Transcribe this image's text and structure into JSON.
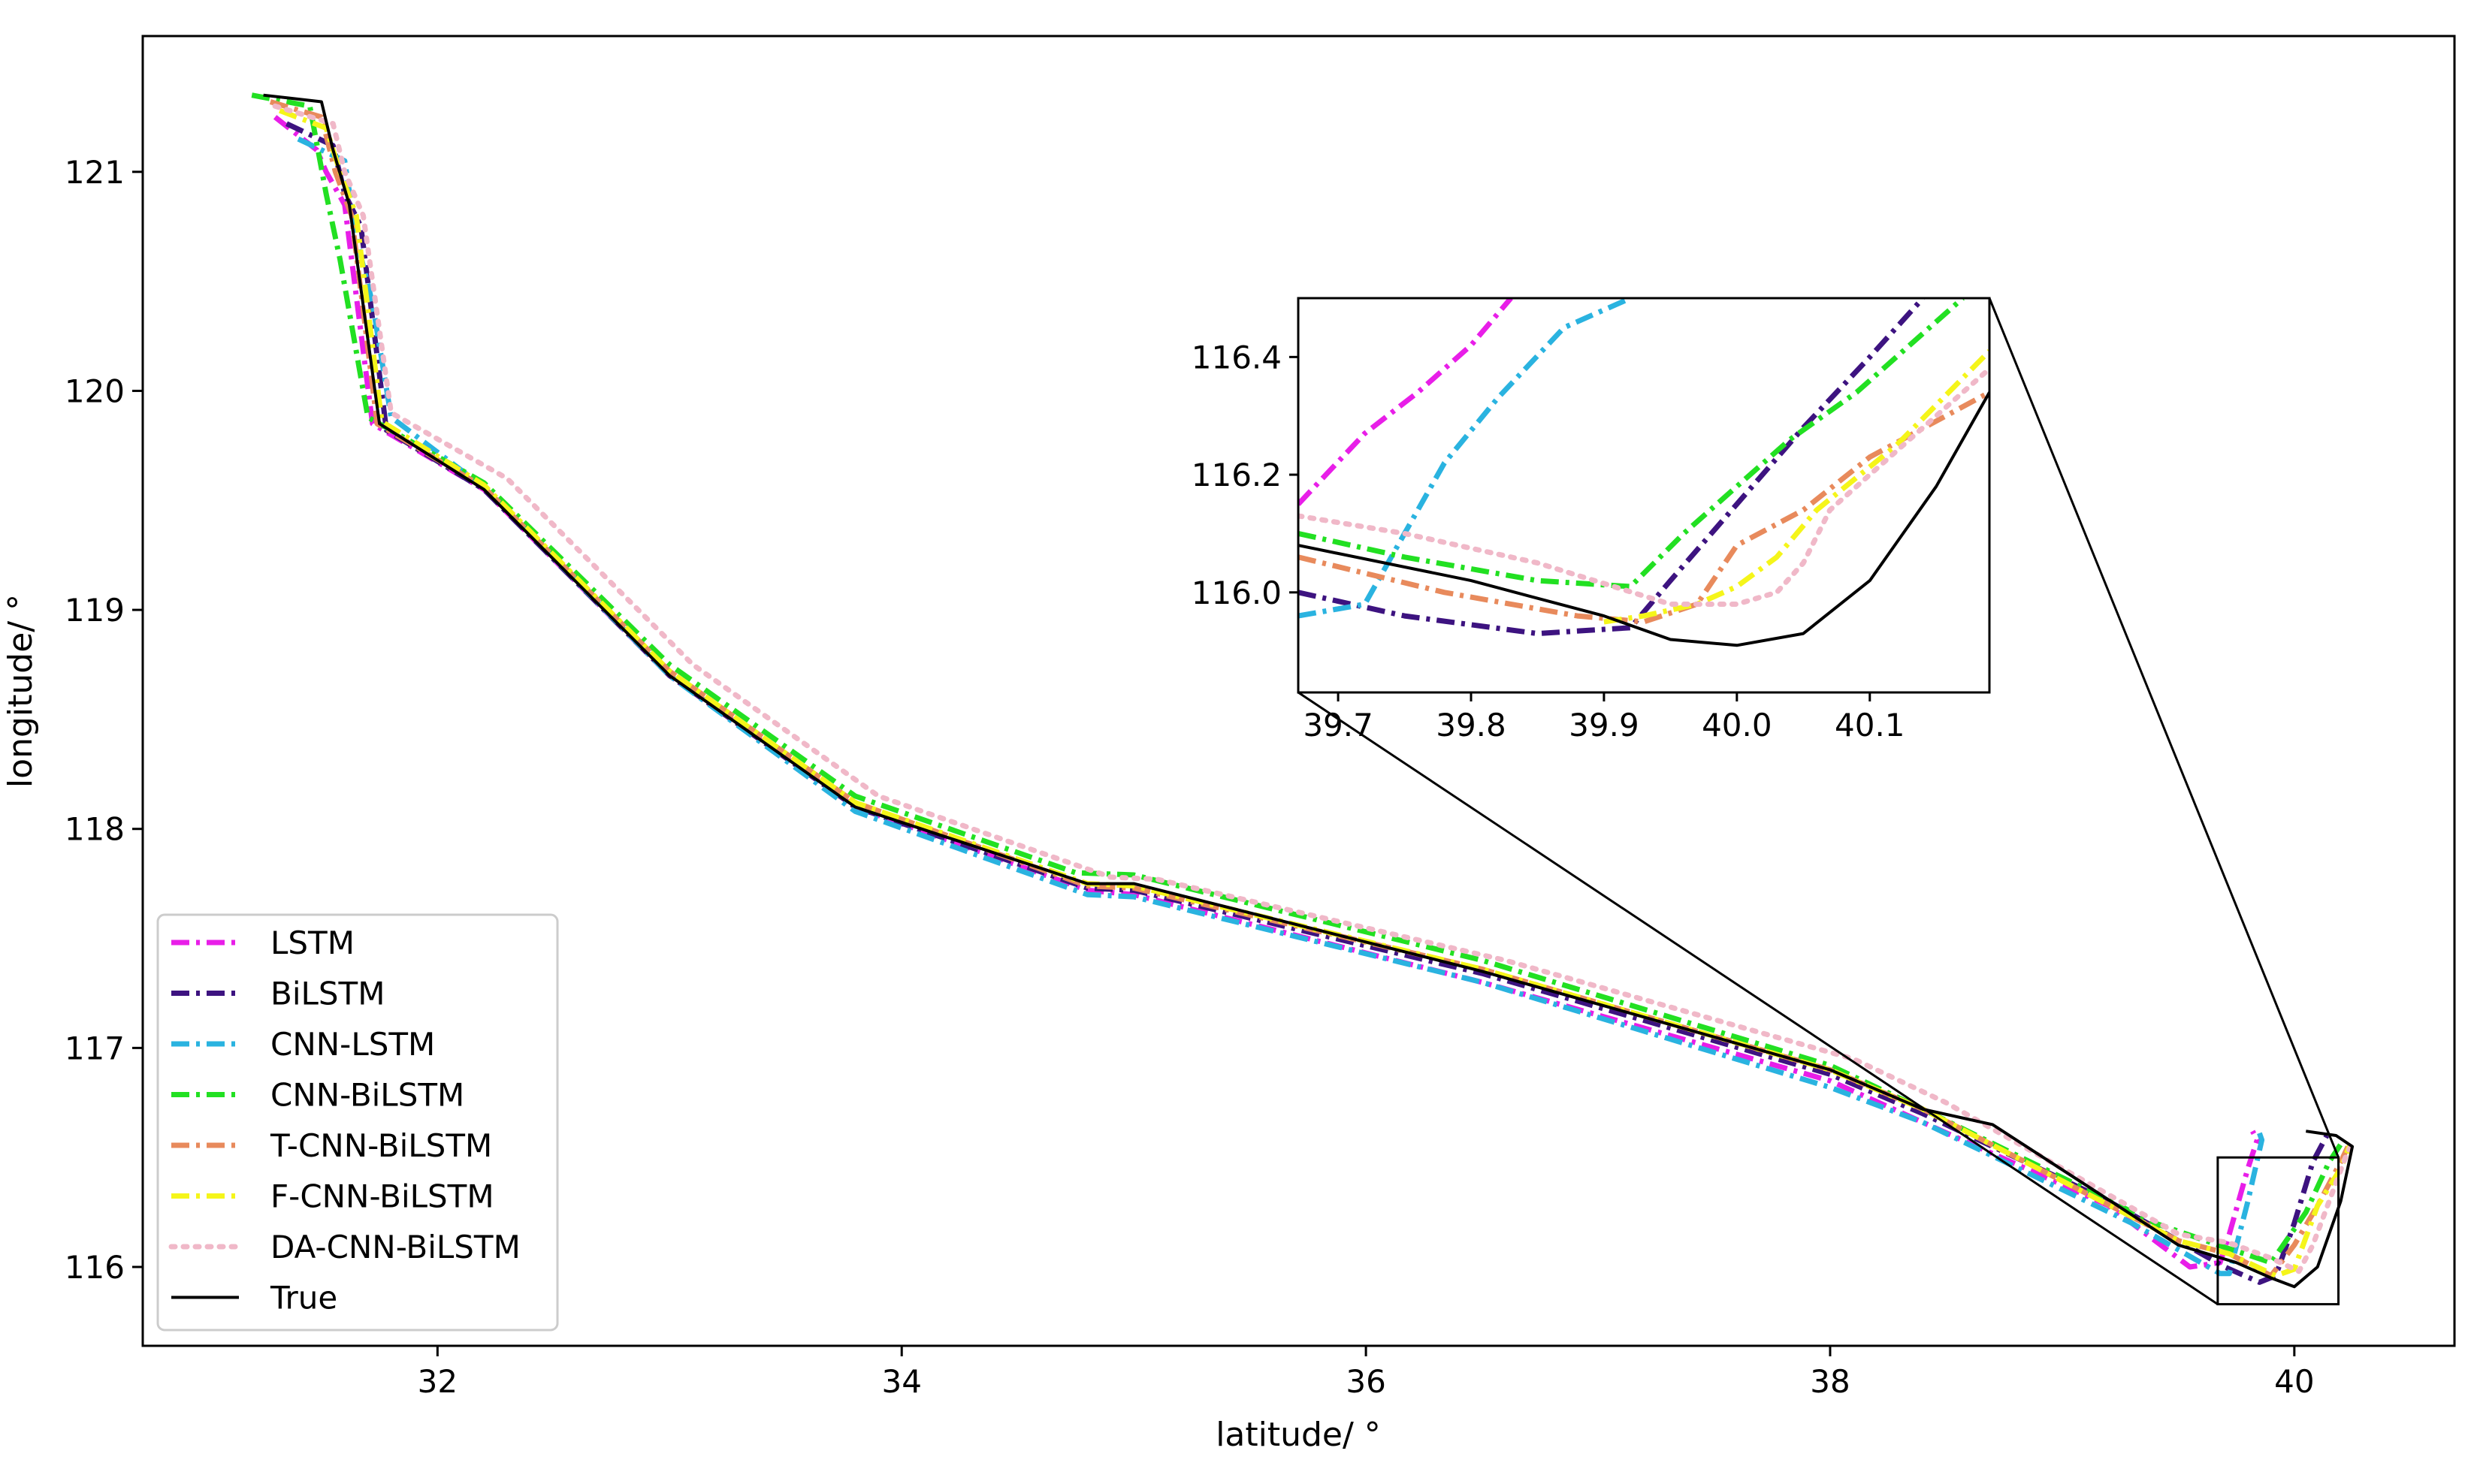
{
  "chart_data": [
    {
      "type": "line",
      "panel": "main",
      "xlabel": "latitude/ °",
      "ylabel": "longitude/ °",
      "xlim": [
        30.73,
        40.69
      ],
      "ylim": [
        115.64,
        121.62
      ],
      "xticks": [
        32,
        34,
        36,
        38,
        40
      ],
      "yticks": [
        116,
        117,
        118,
        119,
        120,
        121
      ],
      "grid": false,
      "legend_position": "lower-left",
      "true_path": {
        "x": [
          31.25,
          31.5,
          31.55,
          31.62,
          31.75,
          32.2,
          33.0,
          33.8,
          34.8,
          35.0,
          36.5,
          38.0,
          38.4,
          38.7,
          39.5,
          39.75,
          39.9,
          40.0,
          40.1,
          40.2,
          40.25,
          40.18,
          40.05
        ],
        "y": [
          121.35,
          121.32,
          121.1,
          120.85,
          119.85,
          119.55,
          118.7,
          118.1,
          117.75,
          117.75,
          117.35,
          116.9,
          116.72,
          116.65,
          116.1,
          116.02,
          115.95,
          115.91,
          116.0,
          116.3,
          116.55,
          116.6,
          116.62
        ]
      },
      "series": [
        {
          "name": "LSTM",
          "color": "#e81ee8",
          "dash": "dashdot",
          "x": [
            31.3,
            31.48,
            31.52,
            31.6,
            31.72,
            32.2,
            33.0,
            33.8,
            34.8,
            35.0,
            36.5,
            38.0,
            38.4,
            39.2,
            39.55,
            39.68,
            39.72,
            39.8,
            39.84,
            39.82
          ],
          "y": [
            121.25,
            121.1,
            121.0,
            120.85,
            119.85,
            119.55,
            118.7,
            118.1,
            117.72,
            117.7,
            117.3,
            116.85,
            116.66,
            116.28,
            116.0,
            116.02,
            116.15,
            116.45,
            116.58,
            116.62
          ]
        },
        {
          "name": "BiLSTM",
          "color": "#3d1380",
          "dash": "dashdot",
          "x": [
            31.35,
            31.55,
            31.6,
            31.67,
            31.78,
            32.2,
            33.0,
            33.8,
            34.8,
            35.0,
            36.5,
            38.0,
            38.4,
            39.2,
            39.7,
            39.85,
            39.92,
            40.0,
            40.08,
            40.14
          ],
          "y": [
            121.22,
            121.12,
            120.9,
            120.75,
            119.82,
            119.55,
            118.7,
            118.1,
            117.73,
            117.72,
            117.34,
            116.88,
            116.7,
            116.3,
            116.0,
            115.93,
            115.96,
            116.2,
            116.48,
            116.6
          ]
        },
        {
          "name": "CNN-LSTM",
          "color": "#2ab3e0",
          "dash": "dashdot",
          "x": [
            31.4,
            31.6,
            31.65,
            31.72,
            31.8,
            32.2,
            33.0,
            33.8,
            34.8,
            35.0,
            36.5,
            38.0,
            38.4,
            39.3,
            39.68,
            39.72,
            39.8,
            39.86,
            39.84
          ],
          "y": [
            121.15,
            121.05,
            120.7,
            120.4,
            119.88,
            119.56,
            118.7,
            118.08,
            117.7,
            117.69,
            117.3,
            116.82,
            116.66,
            116.2,
            115.97,
            115.97,
            116.3,
            116.58,
            116.64
          ]
        },
        {
          "name": "CNN-BiLSTM",
          "color": "#22e022",
          "dash": "dashdot",
          "x": [
            31.2,
            31.45,
            31.52,
            31.58,
            31.7,
            32.2,
            33.0,
            33.8,
            34.75,
            35.0,
            36.5,
            38.0,
            38.4,
            39.4,
            39.7,
            39.9,
            40.05,
            40.15,
            40.2
          ],
          "y": [
            121.35,
            121.3,
            120.9,
            120.6,
            119.88,
            119.58,
            118.75,
            118.15,
            117.8,
            117.79,
            117.4,
            116.92,
            116.72,
            116.2,
            116.09,
            116.02,
            116.25,
            116.48,
            116.56
          ]
        },
        {
          "name": "T-CNN-BiLSTM",
          "color": "#e88a5c",
          "dash": "dashdot",
          "x": [
            31.28,
            31.5,
            31.56,
            31.63,
            31.74,
            32.2,
            33.0,
            33.8,
            34.8,
            35.0,
            36.5,
            38.0,
            38.4,
            39.5,
            39.72,
            39.9,
            40.0,
            40.1,
            40.2,
            40.24
          ],
          "y": [
            121.32,
            121.25,
            121.0,
            120.8,
            119.85,
            119.56,
            118.72,
            118.12,
            117.74,
            117.73,
            117.36,
            116.9,
            116.72,
            116.12,
            116.06,
            115.96,
            116.1,
            116.28,
            116.48,
            116.57
          ]
        },
        {
          "name": "F-CNN-BiLSTM",
          "color": "#f5f51a",
          "dash": "dashdot",
          "x": [
            31.32,
            31.52,
            31.58,
            31.65,
            31.76,
            32.2,
            33.0,
            33.8,
            34.8,
            35.0,
            36.5,
            38.0,
            38.4,
            39.5,
            39.72,
            39.92,
            40.0,
            40.1,
            40.2,
            40.24
          ],
          "y": [
            121.28,
            121.2,
            121.0,
            120.8,
            119.86,
            119.57,
            118.72,
            118.12,
            117.75,
            117.74,
            117.36,
            116.9,
            116.72,
            116.12,
            116.06,
            115.96,
            115.99,
            116.28,
            116.45,
            116.56
          ]
        },
        {
          "name": "DA-CNN-BiLSTM",
          "color": "#f0b8c8",
          "dash": "dotted",
          "x": [
            31.3,
            31.55,
            31.6,
            31.68,
            31.8,
            32.3,
            33.1,
            33.9,
            34.9,
            35.1,
            36.6,
            38.1,
            38.5,
            39.5,
            39.72,
            39.9,
            40.02,
            40.08,
            40.15,
            40.22,
            40.25
          ],
          "y": [
            121.3,
            121.22,
            121.0,
            120.8,
            119.9,
            119.6,
            118.75,
            118.15,
            117.78,
            117.77,
            117.4,
            116.95,
            116.75,
            116.15,
            116.11,
            116.04,
            115.98,
            116.1,
            116.3,
            116.5,
            116.57
          ]
        },
        {
          "name": "True",
          "color": "#000000",
          "dash": "solid"
        }
      ],
      "zoom_box": {
        "xlim": [
          39.67,
          40.19
        ],
        "ylim": [
          115.83,
          116.5
        ]
      }
    },
    {
      "type": "line",
      "panel": "inset",
      "xlim": [
        39.67,
        40.19
      ],
      "ylim": [
        115.83,
        116.5
      ],
      "xticks": [
        "39.7",
        "39.8",
        "39.9",
        "40.0",
        "40.1"
      ],
      "yticks": [
        "116.0",
        "116.2",
        "116.4"
      ],
      "grid": false,
      "true_path": {
        "x": [
          39.67,
          39.8,
          39.9,
          39.95,
          40.0,
          40.05,
          40.1,
          40.15,
          40.19
        ],
        "y": [
          116.08,
          116.02,
          115.96,
          115.92,
          115.91,
          115.93,
          116.02,
          116.18,
          116.34
        ]
      },
      "series": [
        {
          "name": "LSTM",
          "x": [
            39.67,
            39.72,
            39.76,
            39.8,
            39.83
          ],
          "y": [
            116.15,
            116.27,
            116.34,
            116.42,
            116.5
          ]
        },
        {
          "name": "BiLSTM",
          "x": [
            39.67,
            39.75,
            39.85,
            39.92,
            39.95,
            40.0,
            40.05,
            40.1,
            40.14
          ],
          "y": [
            116.0,
            115.96,
            115.93,
            115.94,
            116.02,
            116.15,
            116.28,
            116.4,
            116.5
          ]
        },
        {
          "name": "CNN-LSTM",
          "x": [
            39.67,
            39.72,
            39.75,
            39.78,
            39.82,
            39.87,
            39.92
          ],
          "y": [
            115.96,
            115.98,
            116.1,
            116.22,
            116.33,
            116.45,
            116.5
          ]
        },
        {
          "name": "CNN-BiLSTM",
          "x": [
            39.67,
            39.75,
            39.85,
            39.92,
            39.96,
            40.0,
            40.04,
            40.09,
            40.14,
            40.17
          ],
          "y": [
            116.1,
            116.06,
            116.02,
            116.01,
            116.1,
            116.18,
            116.26,
            116.34,
            116.44,
            116.5
          ]
        },
        {
          "name": "T-CNN-BiLSTM",
          "x": [
            39.67,
            39.78,
            39.88,
            39.93,
            39.97,
            40.0,
            40.05,
            40.1,
            40.19
          ],
          "y": [
            116.06,
            116.0,
            115.96,
            115.95,
            115.98,
            116.08,
            116.14,
            116.23,
            116.34
          ]
        },
        {
          "name": "F-CNN-BiLSTM",
          "x": [
            39.9,
            39.93,
            39.97,
            40.0,
            40.03,
            40.06,
            40.12,
            40.19
          ],
          "y": [
            115.95,
            115.96,
            115.98,
            116.01,
            116.06,
            116.14,
            116.25,
            116.41
          ]
        },
        {
          "name": "DA-CNN-BiLSTM",
          "x": [
            39.67,
            39.75,
            39.85,
            39.95,
            40.0,
            40.03,
            40.05,
            40.07,
            40.12,
            40.19
          ],
          "y": [
            116.13,
            116.1,
            116.05,
            115.98,
            115.98,
            116.0,
            116.05,
            116.14,
            116.24,
            116.38
          ]
        }
      ]
    }
  ]
}
